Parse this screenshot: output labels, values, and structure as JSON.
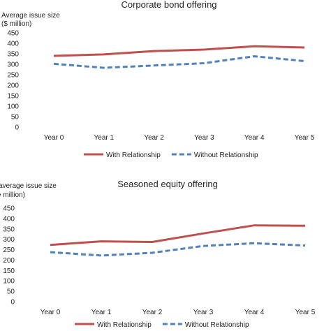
{
  "chart_data": [
    {
      "type": "line",
      "title": "Corporate bond offering",
      "ylabel_line1": "Average issue size",
      "ylabel_line2": "($ million)",
      "categories": [
        "Year 0",
        "Year 1",
        "Year 2",
        "Year 3",
        "Year 4",
        "Year 5"
      ],
      "yticks": [
        "0",
        "50",
        "100",
        "150",
        "200",
        "250",
        "300",
        "350",
        "400",
        "450"
      ],
      "ylim": [
        0,
        450
      ],
      "grid": false,
      "legend": "bottom",
      "series": [
        {
          "name": "With Relationship",
          "values": [
            340,
            347,
            363,
            370,
            386,
            380
          ],
          "color": "#c0504d",
          "dash": "solid"
        },
        {
          "name": "Without Relationship",
          "values": [
            302,
            283,
            294,
            305,
            338,
            315
          ],
          "color": "#4f81bd",
          "dash": "dashed"
        }
      ]
    },
    {
      "type": "line",
      "title": "Seasoned equity offering",
      "ylabel_line1": "average issue size",
      "ylabel_line2": "• million)",
      "categories": [
        "Year 0",
        "Year 1",
        "Year 2",
        "Year 3",
        "Year 4",
        "Year 5"
      ],
      "yticks": [
        "0",
        "50",
        "100",
        "150",
        "200",
        "250",
        "300",
        "350",
        "400",
        "450"
      ],
      "ylim": [
        0,
        450
      ],
      "grid": false,
      "legend": "bottom",
      "series": [
        {
          "name": "With Relationship",
          "values": [
            273,
            290,
            287,
            328,
            367,
            365
          ],
          "color": "#c0504d",
          "dash": "solid"
        },
        {
          "name": "Without Relationship",
          "values": [
            238,
            222,
            235,
            268,
            281,
            270
          ],
          "color": "#4f81bd",
          "dash": "dashed"
        }
      ]
    }
  ]
}
